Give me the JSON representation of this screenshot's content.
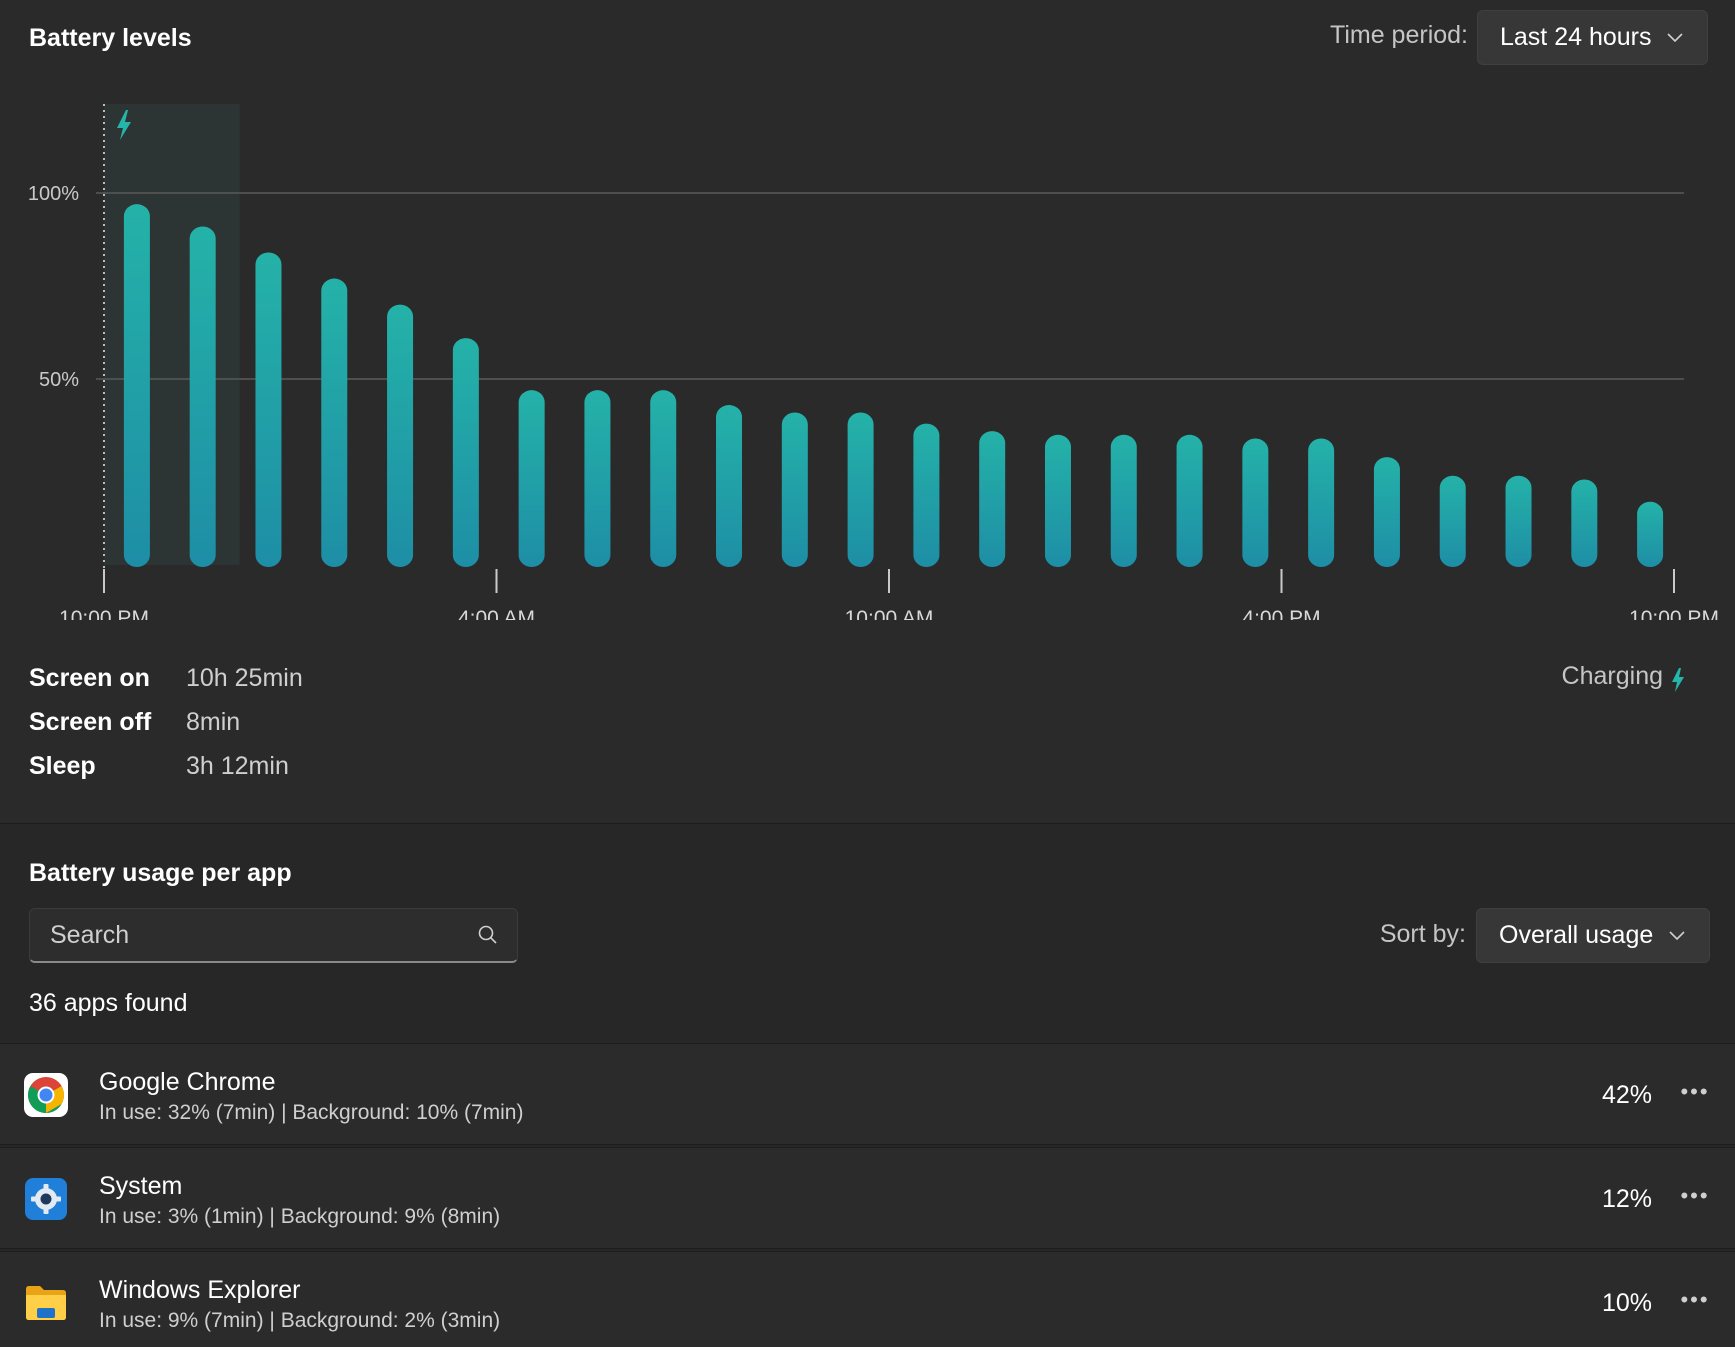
{
  "battery_levels": {
    "title": "Battery levels",
    "period_label": "Time period:",
    "period_value": "Last 24 hours",
    "charging_label": "Charging",
    "charging_window": [
      0,
      2
    ],
    "stats": [
      {
        "label": "Screen on",
        "value": "10h 25min"
      },
      {
        "label": "Screen off",
        "value": "8min"
      },
      {
        "label": "Sleep",
        "value": "3h 12min"
      }
    ]
  },
  "chart_data": {
    "type": "bar",
    "title": "Battery levels",
    "ylim": [
      0,
      125
    ],
    "y_ticks": [
      {
        "value": 100,
        "label": "100%"
      },
      {
        "value": 50,
        "label": "50%"
      }
    ],
    "x_ticks": [
      "10:00 PM",
      "4:00 AM",
      "10:00 AM",
      "4:00 PM",
      "10:00 PM"
    ],
    "values": [
      97,
      91,
      84,
      77,
      70,
      61,
      47,
      47,
      47,
      43,
      41,
      41,
      38,
      36,
      35,
      35,
      35,
      34,
      34,
      29,
      24,
      24,
      23,
      17
    ],
    "grid": true,
    "bar_color_top": "#24b2a8",
    "bar_color_bottom": "#1e8ea6"
  },
  "usage": {
    "title": "Battery usage per app",
    "search_placeholder": "Search",
    "sort_label": "Sort by:",
    "sort_value": "Overall usage",
    "apps_found": "36 apps found",
    "apps": [
      {
        "name": "Google Chrome",
        "detail": "In use: 32% (7min) | Background: 10% (7min)",
        "percent": "42%",
        "icon": "chrome-icon"
      },
      {
        "name": "System",
        "detail": "In use: 3% (1min) | Background: 9% (8min)",
        "percent": "12%",
        "icon": "system-gear-icon"
      },
      {
        "name": "Windows Explorer",
        "detail": "In use: 9% (7min) | Background: 2% (3min)",
        "percent": "10%",
        "icon": "folder-icon"
      }
    ]
  },
  "colors": {
    "accent": "#26b5ab",
    "background": "#272727"
  }
}
